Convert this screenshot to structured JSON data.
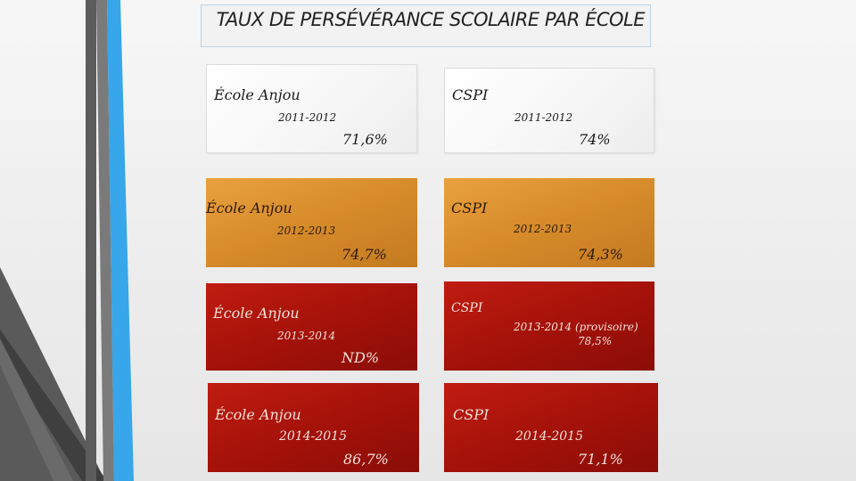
{
  "title": "TAUX DE PERSÉVÉRANCE SCOLAIRE PAR ÉCOLE",
  "cards": {
    "anjou_2011": {
      "school": "École Anjou",
      "year": "2011-2012",
      "value": "71,6%"
    },
    "cspi_2011": {
      "school": "CSPI",
      "year": "2011-2012",
      "value": "74%"
    },
    "anjou_2012": {
      "school": "École Anjou",
      "year": "2012-2013",
      "value": "74,7%"
    },
    "cspi_2012": {
      "school": "CSPI",
      "year": "2012-2013",
      "value": "74,3%"
    },
    "anjou_2013": {
      "school": "École Anjou",
      "year": "2013-2014",
      "value": "ND%"
    },
    "cspi_2013": {
      "school": "CSPI",
      "year": "2013-2014 (provisoire)",
      "value": "78,5%"
    },
    "anjou_2014": {
      "school": "École Anjou",
      "year": "2014-2015",
      "value": "86,7%"
    },
    "cspi_2014": {
      "school": "CSPI",
      "year": "2014-2015",
      "value": "71,1%"
    }
  },
  "colors": {
    "orange": "#d88d2b",
    "red": "#a5120a",
    "white": "#f6f6f6",
    "accent_blue": "#3a9fe0",
    "dark_gray": "#4a4a4a"
  }
}
